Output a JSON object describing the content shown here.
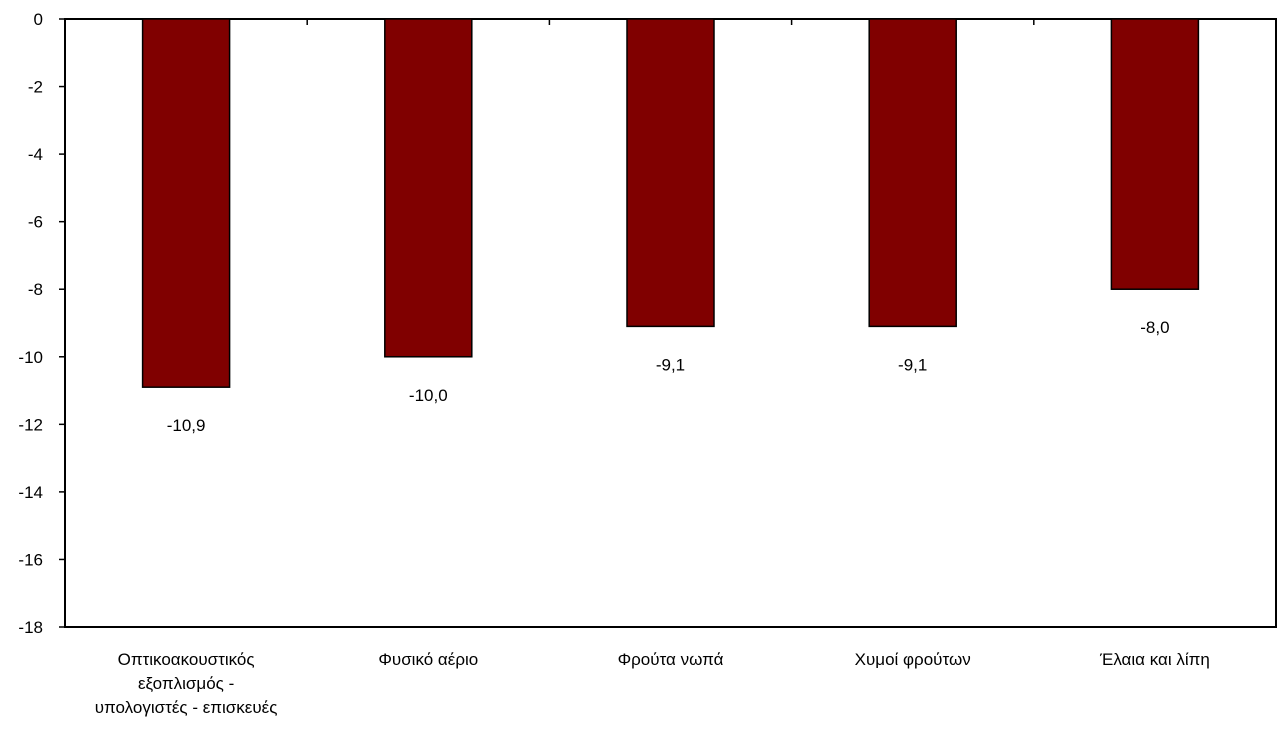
{
  "chart_data": {
    "type": "bar",
    "categories": [
      [
        "Οπτικοακουστικός",
        "εξοπλισμός -",
        "υπολογιστές - επισκευές"
      ],
      [
        "Φυσικό αέριο"
      ],
      [
        "Φρούτα νωπά"
      ],
      [
        "Χυμοί φρούτων"
      ],
      [
        "Έλαια και λίπη"
      ]
    ],
    "values": [
      -10.9,
      -10.0,
      -9.1,
      -9.1,
      -8.0
    ],
    "value_labels": [
      "-10,9",
      "-10,0",
      "-9,1",
      "-9,1",
      "-8,0"
    ],
    "ylim": [
      -18,
      0
    ],
    "yticks": [
      0,
      -2,
      -4,
      -6,
      -8,
      -10,
      -12,
      -14,
      -16,
      -18
    ],
    "grid": false,
    "colors": {
      "bar": "#800000",
      "bar_stroke": "#000000",
      "axis": "#000000"
    }
  }
}
